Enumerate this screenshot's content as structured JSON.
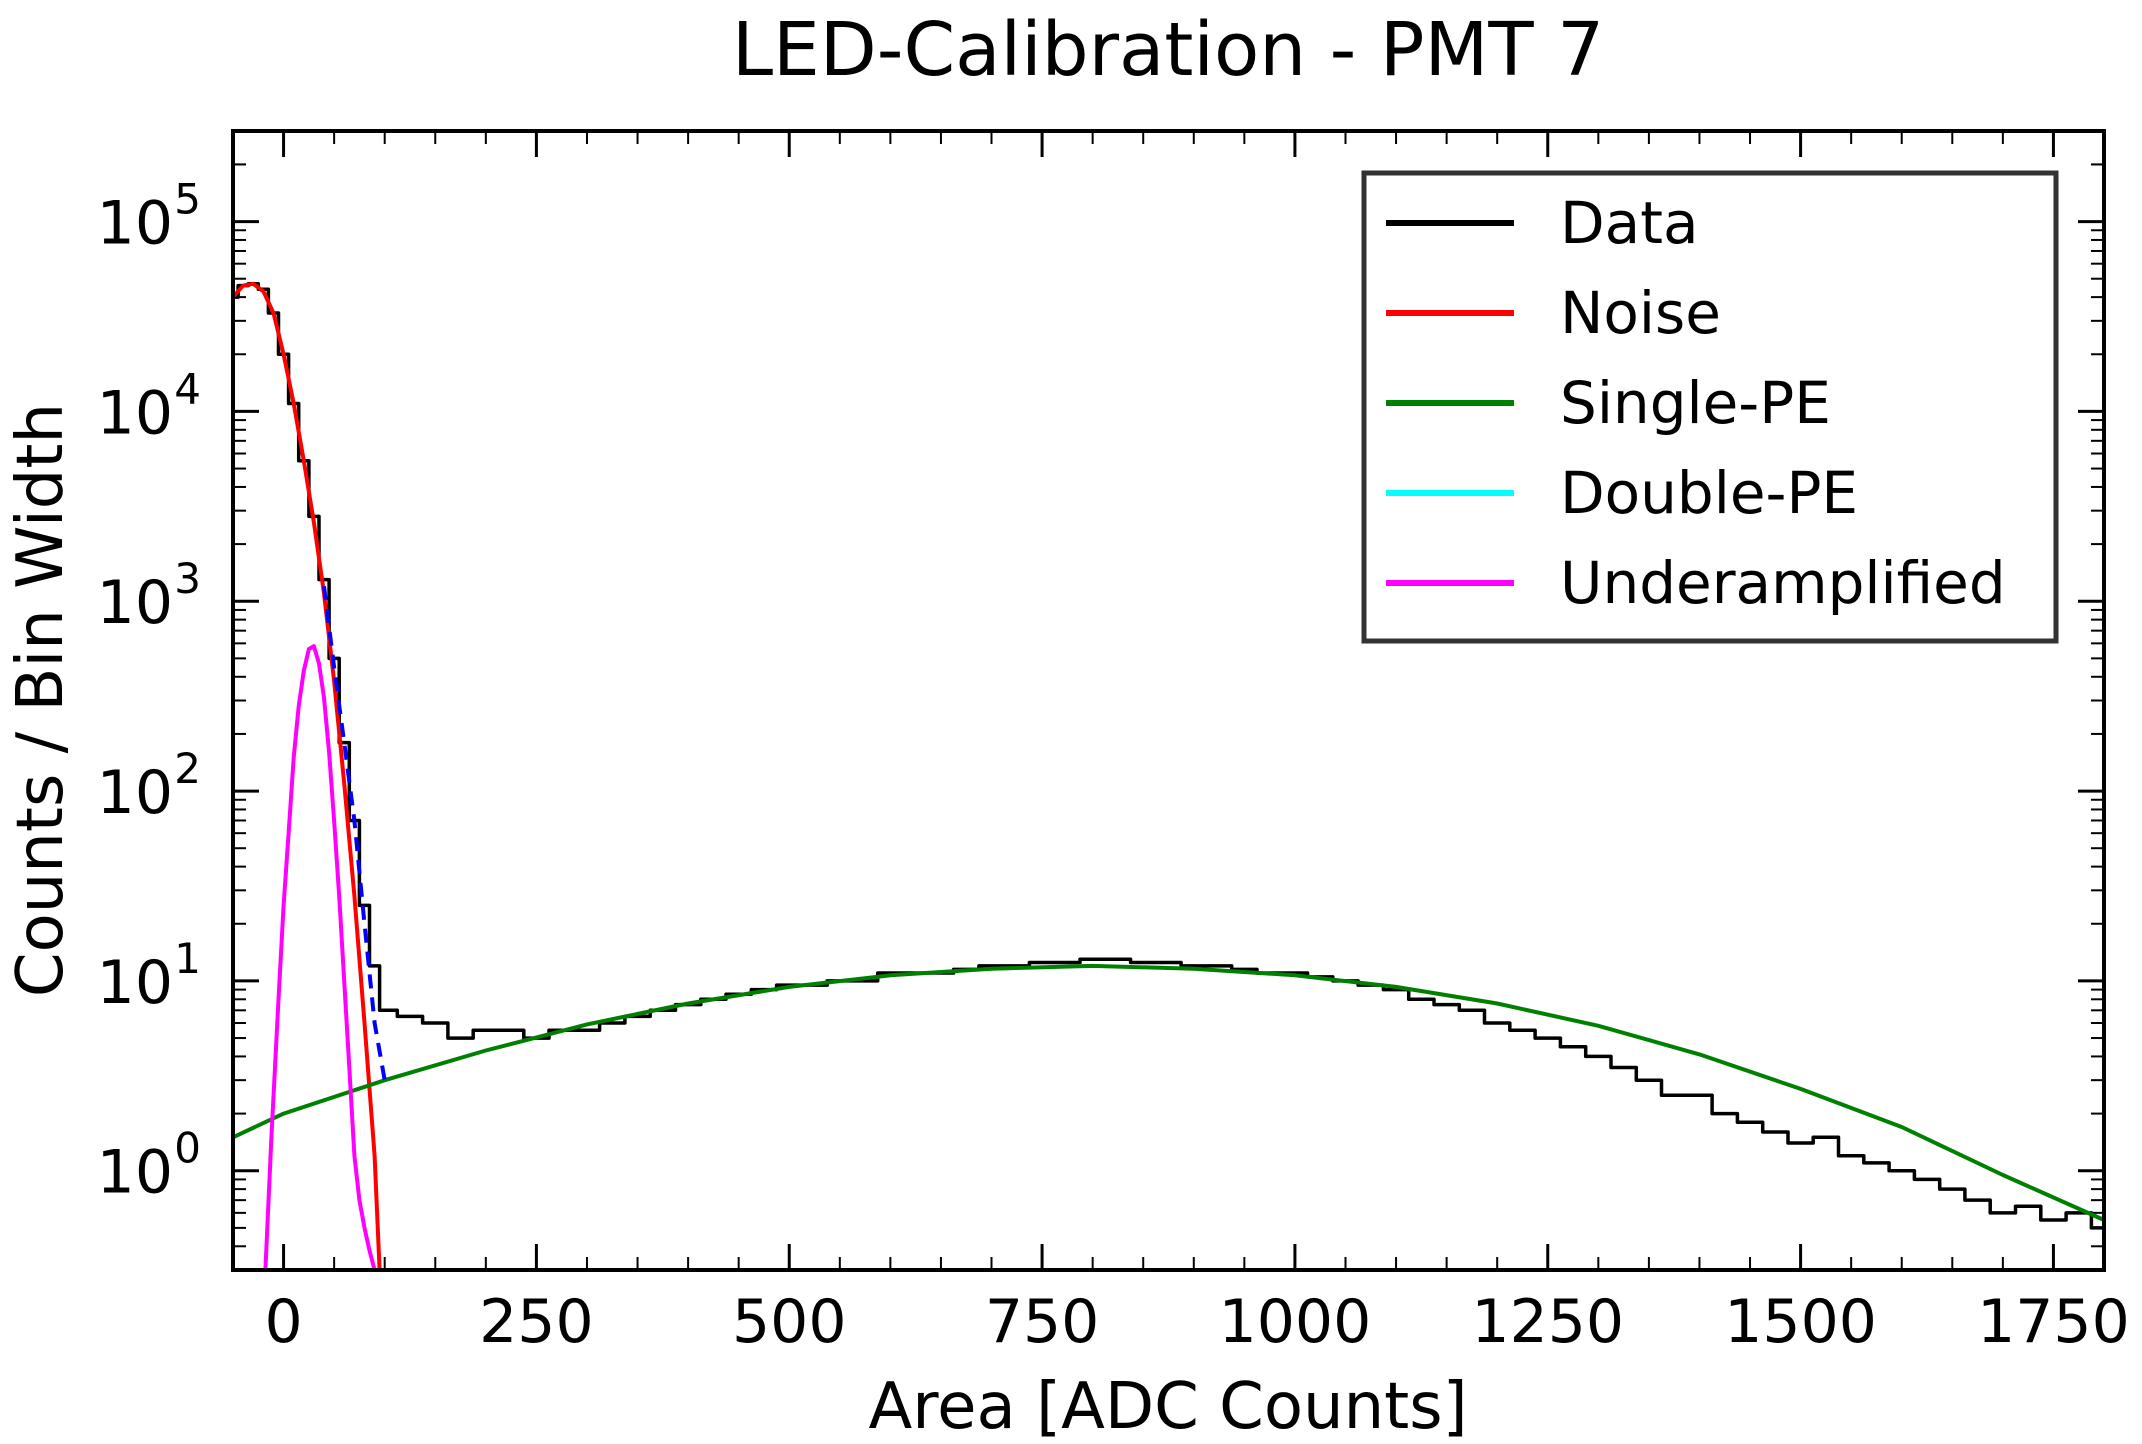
{
  "chart_data": {
    "type": "line",
    "title": "LED-Calibration - PMT 7",
    "xlabel": "Area [ADC Counts]",
    "ylabel": "Counts / Bin Width",
    "xlim": [
      -50,
      1800
    ],
    "ylim": [
      0.3,
      300000
    ],
    "yscale": "log",
    "grid": false,
    "legend_position": "top-right",
    "x_ticks": [
      0,
      250,
      500,
      750,
      1000,
      1250,
      1500,
      1750
    ],
    "y_ticks": [
      {
        "value": 1,
        "base": "10",
        "exp": "0"
      },
      {
        "value": 10,
        "base": "10",
        "exp": "1"
      },
      {
        "value": 100,
        "base": "10",
        "exp": "2"
      },
      {
        "value": 1000,
        "base": "10",
        "exp": "3"
      },
      {
        "value": 10000,
        "base": "10",
        "exp": "4"
      },
      {
        "value": 100000,
        "base": "10",
        "exp": "5"
      }
    ],
    "legend": [
      {
        "label": "Data",
        "color": "#000000"
      },
      {
        "label": "Noise",
        "color": "#ff0000"
      },
      {
        "label": "Single-PE",
        "color": "#008000"
      },
      {
        "label": "Double-PE",
        "color": "#00ffff"
      },
      {
        "label": "Underamplified",
        "color": "#ff00ff"
      }
    ],
    "series": [
      {
        "name": "Data",
        "color": "#000000",
        "style": "steps",
        "bin_width": 5,
        "x": [
          -50,
          -40,
          -30,
          -20,
          -10,
          0,
          10,
          20,
          30,
          40,
          50,
          60,
          70,
          80,
          90,
          100,
          125,
          150,
          175,
          200,
          225,
          250,
          275,
          300,
          325,
          350,
          375,
          400,
          425,
          450,
          475,
          500,
          525,
          550,
          575,
          600,
          625,
          650,
          675,
          700,
          725,
          750,
          775,
          800,
          825,
          850,
          875,
          900,
          925,
          950,
          975,
          1000,
          1025,
          1050,
          1075,
          1100,
          1125,
          1150,
          1175,
          1200,
          1225,
          1250,
          1275,
          1300,
          1325,
          1350,
          1375,
          1400,
          1425,
          1450,
          1475,
          1500,
          1525,
          1550,
          1575,
          1600,
          1625,
          1650,
          1675,
          1700,
          1725,
          1750,
          1775,
          1800
        ],
        "y": [
          40000,
          46000,
          47000,
          44000,
          33000,
          20000,
          11000,
          5500,
          2800,
          1300,
          500,
          180,
          70,
          25,
          12,
          7,
          6.5,
          6,
          5,
          5.5,
          5.5,
          5,
          5.5,
          5.5,
          6,
          6.5,
          7,
          7.5,
          8,
          8.5,
          9,
          9.5,
          9.5,
          10,
          10,
          11,
          11,
          11,
          11.5,
          12,
          12,
          12.5,
          12.5,
          13,
          13,
          12.5,
          12.5,
          12,
          12,
          11.5,
          11,
          11,
          10.5,
          10,
          9.5,
          9,
          8,
          7.5,
          7,
          6,
          5.5,
          5,
          4.5,
          4,
          3.5,
          3,
          2.5,
          2.5,
          2,
          1.8,
          1.6,
          1.4,
          1.5,
          1.2,
          1.1,
          1.0,
          0.9,
          0.8,
          0.7,
          0.6,
          0.65,
          0.55,
          0.6,
          0.5
        ]
      },
      {
        "name": "Noise",
        "color": "#ff0000",
        "x": [
          -50,
          -40,
          -30,
          -20,
          -10,
          0,
          10,
          20,
          30,
          40,
          50,
          60,
          70,
          80,
          90,
          95
        ],
        "y": [
          40000,
          46000,
          47000,
          43000,
          33000,
          20000,
          11000,
          5500,
          2600,
          1100,
          380,
          110,
          28,
          6,
          1.2,
          0.3
        ]
      },
      {
        "name": "Single-PE",
        "color": "#008000",
        "x": [
          -50,
          0,
          100,
          200,
          300,
          400,
          500,
          600,
          700,
          800,
          900,
          1000,
          1100,
          1200,
          1300,
          1400,
          1500,
          1600,
          1700,
          1800
        ],
        "y": [
          1.5,
          2.0,
          3.0,
          4.3,
          5.9,
          7.6,
          9.3,
          10.7,
          11.6,
          12.0,
          11.6,
          10.7,
          9.3,
          7.6,
          5.8,
          4.1,
          2.7,
          1.7,
          0.95,
          0.55
        ]
      },
      {
        "name": "Double-PE",
        "color": "#00ffff",
        "x": [],
        "y": []
      },
      {
        "name": "Underamplified",
        "color": "#ff00ff",
        "x": [
          -18,
          -12,
          -5,
          0,
          5,
          10,
          15,
          20,
          25,
          30,
          35,
          40,
          45,
          50,
          55,
          60,
          65,
          70,
          75,
          80,
          85,
          90
        ],
        "y": [
          0.3,
          1.5,
          8,
          25,
          60,
          150,
          280,
          430,
          560,
          580,
          470,
          310,
          160,
          70,
          28,
          10,
          3.5,
          1.2,
          0.7,
          0.5,
          0.38,
          0.3
        ]
      },
      {
        "name": "",
        "color": "#0000ff",
        "style": "dashed",
        "x": [
          40,
          50,
          60,
          70,
          80,
          90,
          100
        ],
        "y": [
          1200,
          450,
          180,
          70,
          20,
          6,
          3
        ]
      }
    ]
  }
}
